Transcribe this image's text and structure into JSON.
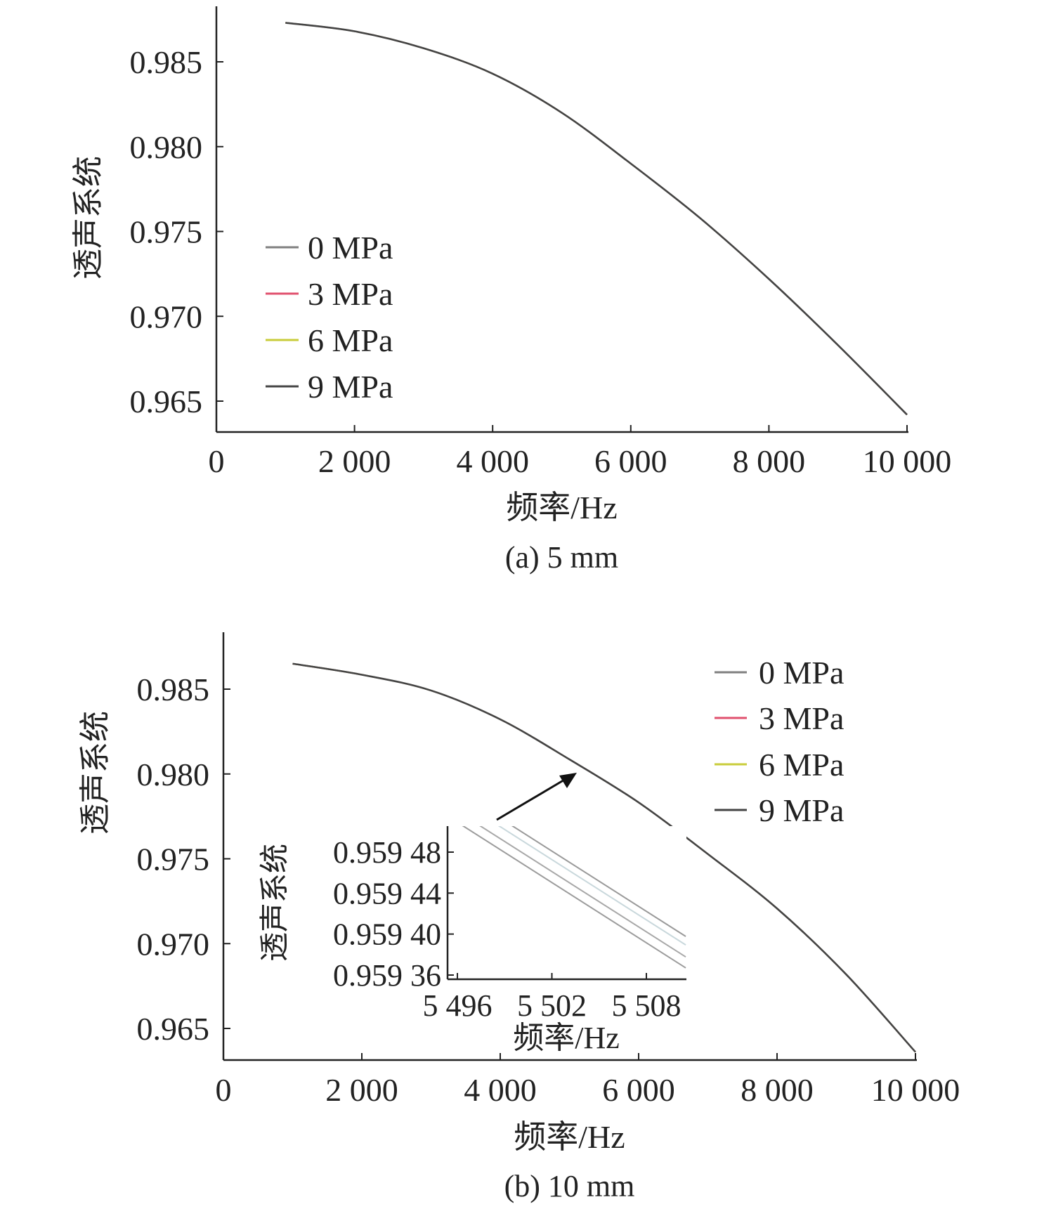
{
  "chart_data": [
    {
      "type": "line",
      "caption": "(a) 5 mm",
      "xlabel": "频率/Hz",
      "ylabel": "透声系统",
      "xlim": [
        0,
        10000
      ],
      "ylim": [
        0.963,
        0.9885
      ],
      "xticks": [
        0,
        2000,
        4000,
        6000,
        8000,
        10000
      ],
      "xtick_labels": [
        "0",
        "2 000",
        "4 000",
        "6 000",
        "8 000",
        "10 000"
      ],
      "yticks": [
        0.965,
        0.97,
        0.975,
        0.98,
        0.985
      ],
      "ytick_labels": [
        "0.965",
        "0.970",
        "0.975",
        "0.980",
        "0.985"
      ],
      "grid": false,
      "legend_placement": "center-left",
      "x": [
        1000,
        2000,
        3000,
        4000,
        5000,
        6000,
        7000,
        8000,
        9000,
        10000
      ],
      "series": [
        {
          "name": "0 MPa",
          "color": "#808080",
          "values": [
            0.9873,
            0.9868,
            0.9858,
            0.9843,
            0.982,
            0.979,
            0.9758,
            0.9722,
            0.9683,
            0.9642
          ]
        },
        {
          "name": "3 MPa",
          "color": "#e0506e",
          "values": [
            0.9873,
            0.9868,
            0.9858,
            0.9843,
            0.982,
            0.979,
            0.9758,
            0.9722,
            0.9683,
            0.9642
          ]
        },
        {
          "name": "6 MPa",
          "color": "#c8cc3a",
          "values": [
            0.9873,
            0.9868,
            0.9858,
            0.9843,
            0.982,
            0.979,
            0.9758,
            0.9722,
            0.9683,
            0.9642
          ]
        },
        {
          "name": "9 MPa",
          "color": "#444444",
          "values": [
            0.9873,
            0.9868,
            0.9858,
            0.9843,
            0.982,
            0.979,
            0.9758,
            0.9722,
            0.9683,
            0.9642
          ]
        }
      ]
    },
    {
      "type": "line",
      "caption": "(b) 10 mm",
      "xlabel": "频率/Hz",
      "ylabel": "透声系统",
      "xlim": [
        0,
        10000
      ],
      "ylim": [
        0.963,
        0.9885
      ],
      "xticks": [
        0,
        2000,
        4000,
        6000,
        8000,
        10000
      ],
      "xtick_labels": [
        "0",
        "2 000",
        "4 000",
        "6 000",
        "8 000",
        "10 000"
      ],
      "yticks": [
        0.965,
        0.97,
        0.975,
        0.98,
        0.985
      ],
      "ytick_labels": [
        "0.965",
        "0.970",
        "0.975",
        "0.980",
        "0.985"
      ],
      "grid": false,
      "legend_placement": "top-right",
      "x": [
        1000,
        2000,
        3000,
        4000,
        5000,
        6000,
        7000,
        8000,
        9000,
        10000
      ],
      "series": [
        {
          "name": "0 MPa",
          "color": "#808080",
          "values": [
            0.9865,
            0.98585,
            0.98492,
            0.98322,
            0.98086,
            0.97832,
            0.97528,
            0.97207,
            0.96818,
            0.96361
          ]
        },
        {
          "name": "3 MPa",
          "color": "#e0506e",
          "values": [
            0.9865,
            0.98585,
            0.98492,
            0.98322,
            0.98086,
            0.97832,
            0.97528,
            0.97207,
            0.96818,
            0.96361
          ]
        },
        {
          "name": "6 MPa",
          "color": "#c8cc3a",
          "values": [
            0.9865,
            0.98585,
            0.98492,
            0.98322,
            0.98086,
            0.97832,
            0.97528,
            0.97207,
            0.96818,
            0.96361
          ]
        },
        {
          "name": "9 MPa",
          "color": "#444444",
          "values": [
            0.9865,
            0.98585,
            0.98492,
            0.98322,
            0.98086,
            0.97832,
            0.97528,
            0.97207,
            0.96818,
            0.96361
          ]
        }
      ],
      "inset": {
        "xlabel": "频率/Hz",
        "ylabel": "透声系统",
        "xlim": [
          5495.5,
          5510.5
        ],
        "ylim": [
          0.9593575,
          0.959505
        ],
        "xticks": [
          5496,
          5502,
          5508
        ],
        "xtick_labels": [
          "5 496",
          "5 502",
          "5 508"
        ],
        "yticks": [
          0.95936,
          0.9594,
          0.95944,
          0.95948
        ],
        "ytick_labels": [
          "0.959 36",
          "0.959 40",
          "0.959 44",
          "0.959 48"
        ],
        "x": [
          5496,
          5510.5
        ],
        "series": [
          {
            "name": "0 MPa",
            "color": "#9a9a9a",
            "values": [
              0.9595398,
              0.9593977
            ]
          },
          {
            "name": "3 MPa",
            "color": "#c9d8dc",
            "values": [
              0.9595315,
              0.9593894
            ]
          },
          {
            "name": "6 MPa",
            "color": "#a8a8a8",
            "values": [
              0.9595198,
              0.9593777
            ]
          },
          {
            "name": "9 MPa",
            "color": "#9c9c9c",
            "values": [
              0.9595091,
              0.959367
            ]
          }
        ]
      }
    }
  ]
}
